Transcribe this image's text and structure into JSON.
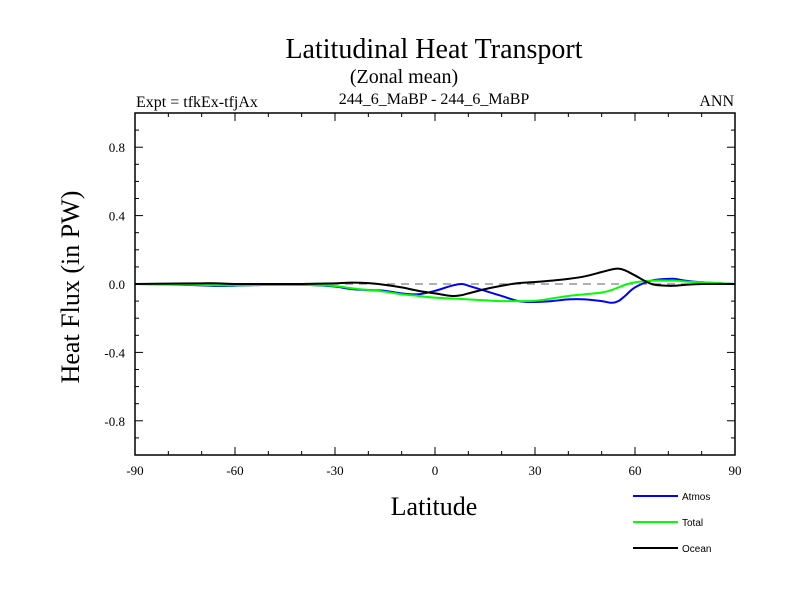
{
  "chart_data": {
    "type": "line",
    "title": "Latitudinal Heat Transport",
    "subtitle": "(Zonal mean)",
    "left_label": "Expt = tfkEx-tfjAx",
    "center_label": "244_6_MaBP - 244_6_MaBP",
    "right_label": "ANN",
    "xlabel": "Latitude",
    "ylabel": "Heat Flux (in PW)",
    "xlim": [
      -90,
      90
    ],
    "ylim": [
      -1.0,
      1.0
    ],
    "x_ticks": [
      -90,
      -60,
      -30,
      0,
      30,
      60,
      90
    ],
    "x_tick_labels": [
      "-90",
      "-60",
      "-30",
      "0",
      "30",
      "60",
      "90"
    ],
    "y_ticks": [
      -0.8,
      -0.4,
      0.0,
      0.4,
      0.8
    ],
    "y_tick_labels": [
      "-0.8",
      "-0.4",
      "0.0",
      "0.4",
      "0.8"
    ],
    "zero_line": "dashed gray",
    "grid": false,
    "legend_position": "bottom-right",
    "x": [
      -90,
      -80,
      -70,
      -65,
      -60,
      -50,
      -40,
      -35,
      -30,
      -25,
      -20,
      -15,
      -10,
      -5,
      0,
      5,
      8,
      10,
      15,
      20,
      25,
      30,
      35,
      40,
      45,
      50,
      53,
      55,
      57,
      60,
      65,
      70,
      72,
      75,
      80,
      85,
      90
    ],
    "series": [
      {
        "name": "Atmos",
        "color": "#0000ff",
        "values": [
          0.0,
          -0.003,
          -0.008,
          -0.012,
          -0.01,
          -0.005,
          -0.005,
          -0.008,
          -0.015,
          -0.03,
          -0.035,
          -0.04,
          -0.055,
          -0.06,
          -0.04,
          -0.01,
          0.0,
          -0.01,
          -0.04,
          -0.07,
          -0.1,
          -0.105,
          -0.1,
          -0.09,
          -0.09,
          -0.1,
          -0.11,
          -0.1,
          -0.07,
          -0.02,
          0.02,
          0.03,
          0.03,
          0.02,
          0.01,
          0.005,
          0.0
        ]
      },
      {
        "name": "Total",
        "color": "#00ff00",
        "values": [
          0.0,
          -0.002,
          -0.005,
          -0.008,
          -0.008,
          -0.005,
          -0.005,
          -0.007,
          -0.012,
          -0.025,
          -0.035,
          -0.045,
          -0.06,
          -0.07,
          -0.08,
          -0.085,
          -0.088,
          -0.09,
          -0.095,
          -0.1,
          -0.1,
          -0.098,
          -0.085,
          -0.07,
          -0.06,
          -0.05,
          -0.035,
          -0.02,
          -0.005,
          0.01,
          0.02,
          0.02,
          0.02,
          0.015,
          0.01,
          0.005,
          0.0
        ]
      },
      {
        "name": "Ocean",
        "color": "#000000",
        "values": [
          0.0,
          0.002,
          0.004,
          0.004,
          0.0,
          0.0,
          0.0,
          0.002,
          0.004,
          0.008,
          0.005,
          -0.005,
          -0.02,
          -0.04,
          -0.055,
          -0.07,
          -0.065,
          -0.055,
          -0.03,
          -0.01,
          0.005,
          0.012,
          0.02,
          0.03,
          0.045,
          0.07,
          0.085,
          0.09,
          0.08,
          0.05,
          0.0,
          -0.01,
          -0.01,
          -0.005,
          0.0,
          0.0,
          0.0
        ]
      }
    ]
  }
}
